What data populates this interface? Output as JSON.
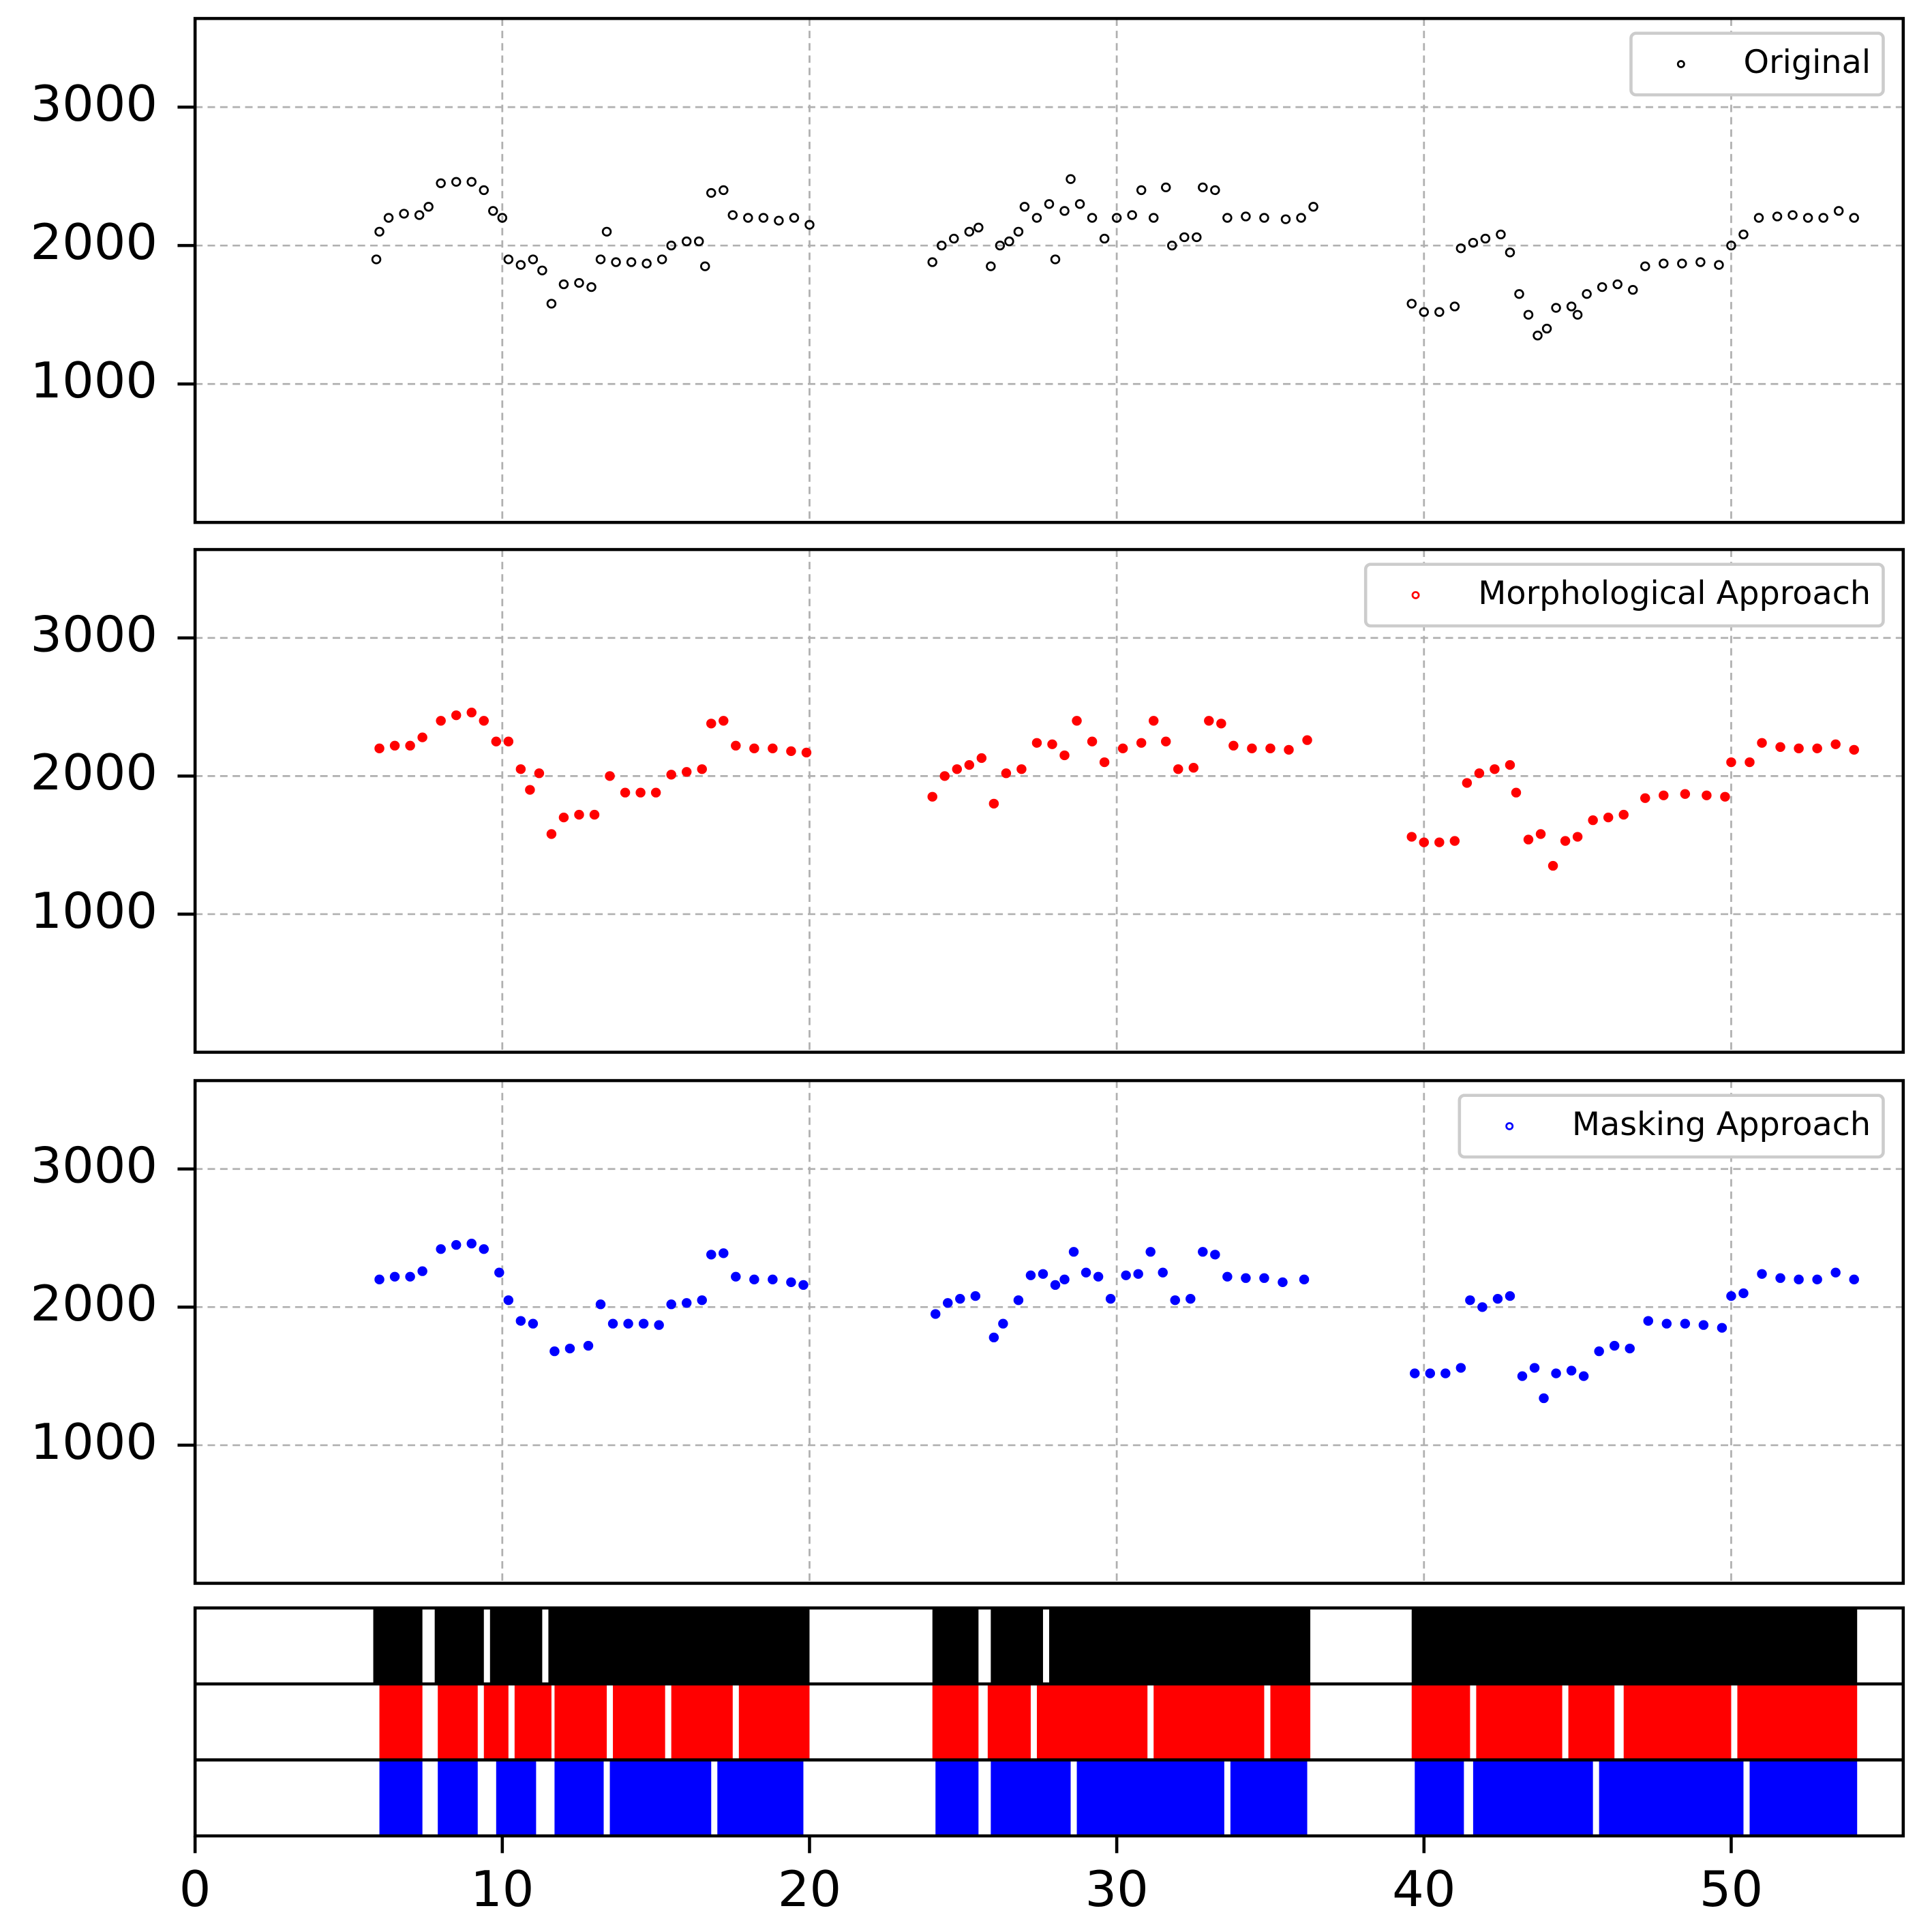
{
  "chart_data": [
    {
      "type": "scatter",
      "xlim": [
        0,
        55.6
      ],
      "ylim": [
        0,
        3640
      ],
      "xticks": [
        0,
        10,
        20,
        30,
        40,
        50
      ],
      "yticks": [
        1000,
        2000,
        3000
      ],
      "grid": true,
      "legend": "upper right",
      "x": [
        5.9,
        6.0,
        6.3,
        6.8,
        7.3,
        7.6,
        8.0,
        8.5,
        9.0,
        9.4,
        9.7,
        10.0,
        10.2,
        10.6,
        11.0,
        11.3,
        11.6,
        12.0,
        12.5,
        12.9,
        13.2,
        13.4,
        13.7,
        14.2,
        14.7,
        15.2,
        15.5,
        16.0,
        16.4,
        16.6,
        16.8,
        17.2,
        17.5,
        18.0,
        18.5,
        19.0,
        19.5,
        20.0,
        24.0,
        24.3,
        24.7,
        25.2,
        25.5,
        25.9,
        26.2,
        26.5,
        26.8,
        27.0,
        27.4,
        27.8,
        28.0,
        28.3,
        28.5,
        28.8,
        29.2,
        29.6,
        30.0,
        30.5,
        30.8,
        31.2,
        31.6,
        31.8,
        32.2,
        32.6,
        32.8,
        33.2,
        33.6,
        34.2,
        34.8,
        35.5,
        36.0,
        36.4,
        39.6,
        40.0,
        40.5,
        41.0,
        41.2,
        41.6,
        42.0,
        42.5,
        42.8,
        43.1,
        43.4,
        43.7,
        44.0,
        44.3,
        44.8,
        45.0,
        45.3,
        45.8,
        46.3,
        46.8,
        47.2,
        47.8,
        48.4,
        49.0,
        49.6,
        50.0,
        50.4,
        50.9,
        51.5,
        52.0,
        52.5,
        53.0,
        53.5,
        54.0
      ],
      "series": [
        {
          "name": "Original",
          "color": "#000000",
          "values": [
            1900,
            2100,
            2200,
            2230,
            2220,
            2280,
            2450,
            2460,
            2460,
            2400,
            2250,
            2200,
            1900,
            1860,
            1900,
            1820,
            1580,
            1720,
            1730,
            1700,
            1900,
            2100,
            1880,
            1880,
            1870,
            1900,
            2000,
            2030,
            2030,
            1850,
            2380,
            2400,
            2220,
            2200,
            2200,
            2180,
            2200,
            2150,
            1880,
            2000,
            2050,
            2100,
            2130,
            1850,
            2000,
            2030,
            2100,
            2280,
            2200,
            2300,
            1900,
            2250,
            2480,
            2300,
            2200,
            2050,
            2200,
            2220,
            2400,
            2200,
            2420,
            2000,
            2060,
            2060,
            2420,
            2400,
            2200,
            2210,
            2200,
            2190,
            2200,
            2280,
            1580,
            1520,
            1520,
            1560,
            1980,
            2020,
            2050,
            2080,
            1950,
            1650,
            1500,
            1350,
            1400,
            1550,
            1560,
            1500,
            1650,
            1700,
            1720,
            1680,
            1850,
            1870,
            1870,
            1880,
            1860,
            2000,
            2080,
            2200,
            2210,
            2220,
            2200,
            2200,
            2250,
            2200
          ]
        }
      ]
    },
    {
      "type": "scatter",
      "xlim": [
        0,
        55.6
      ],
      "ylim": [
        0,
        3640
      ],
      "xticks": [
        0,
        10,
        20,
        30,
        40,
        50
      ],
      "yticks": [
        1000,
        2000,
        3000
      ],
      "grid": true,
      "legend": "upper right",
      "x": [
        6.0,
        6.5,
        7.0,
        7.4,
        8.0,
        8.5,
        9.0,
        9.4,
        9.8,
        10.2,
        10.6,
        10.9,
        11.2,
        11.6,
        12.0,
        12.5,
        13.0,
        13.5,
        14.0,
        14.5,
        15.0,
        15.5,
        16.0,
        16.5,
        16.8,
        17.2,
        17.6,
        18.2,
        18.8,
        19.4,
        19.9,
        24.0,
        24.4,
        24.8,
        25.2,
        25.6,
        26.0,
        26.4,
        26.9,
        27.4,
        27.9,
        28.3,
        28.7,
        29.2,
        29.6,
        30.2,
        30.8,
        31.2,
        31.6,
        32.0,
        32.5,
        33.0,
        33.4,
        33.8,
        34.4,
        35.0,
        35.6,
        36.2,
        39.6,
        40.0,
        40.5,
        41.0,
        41.4,
        41.8,
        42.3,
        42.8,
        43.0,
        43.4,
        43.8,
        44.2,
        44.6,
        45.0,
        45.5,
        46.0,
        46.5,
        47.2,
        47.8,
        48.5,
        49.2,
        49.8,
        50.0,
        50.6,
        51.0,
        51.6,
        52.2,
        52.8,
        53.4,
        54.0
      ],
      "series": [
        {
          "name": "Morphological Approach",
          "color": "#ff0000",
          "values": [
            2200,
            2220,
            2220,
            2280,
            2400,
            2440,
            2460,
            2400,
            2250,
            2250,
            2050,
            1900,
            2020,
            1580,
            1700,
            1720,
            1720,
            2000,
            1880,
            1880,
            1880,
            2010,
            2030,
            2050,
            2380,
            2400,
            2220,
            2200,
            2200,
            2180,
            2170,
            1850,
            2000,
            2050,
            2080,
            2130,
            1800,
            2020,
            2050,
            2240,
            2230,
            2150,
            2400,
            2250,
            2100,
            2200,
            2240,
            2400,
            2250,
            2050,
            2060,
            2400,
            2380,
            2220,
            2200,
            2200,
            2190,
            2260,
            1560,
            1520,
            1520,
            1530,
            1950,
            2020,
            2050,
            2080,
            1880,
            1540,
            1580,
            1350,
            1530,
            1560,
            1680,
            1700,
            1720,
            1840,
            1860,
            1870,
            1860,
            1850,
            2100,
            2100,
            2240,
            2210,
            2200,
            2200,
            2230,
            2190
          ]
        }
      ]
    },
    {
      "type": "scatter",
      "xlim": [
        0,
        55.6
      ],
      "ylim": [
        0,
        3640
      ],
      "xticks": [
        0,
        10,
        20,
        30,
        40,
        50
      ],
      "yticks": [
        1000,
        2000,
        3000
      ],
      "grid": true,
      "legend": "upper right",
      "x": [
        6.0,
        6.5,
        7.0,
        7.4,
        8.0,
        8.5,
        9.0,
        9.4,
        9.9,
        10.2,
        10.6,
        11.0,
        11.7,
        12.2,
        12.8,
        13.2,
        13.6,
        14.1,
        14.6,
        15.1,
        15.5,
        16.0,
        16.5,
        16.8,
        17.2,
        17.6,
        18.2,
        18.8,
        19.4,
        19.8,
        24.1,
        24.5,
        24.9,
        25.4,
        26.0,
        26.3,
        26.8,
        27.2,
        27.6,
        28.0,
        28.3,
        28.6,
        29.0,
        29.4,
        29.8,
        30.3,
        30.7,
        31.1,
        31.5,
        31.9,
        32.4,
        32.8,
        33.2,
        33.6,
        34.2,
        34.8,
        35.4,
        36.1,
        39.7,
        40.2,
        40.7,
        41.2,
        41.5,
        41.9,
        42.4,
        42.8,
        43.2,
        43.6,
        43.9,
        44.3,
        44.8,
        45.2,
        45.7,
        46.2,
        46.7,
        47.3,
        47.9,
        48.5,
        49.1,
        49.7,
        50.0,
        50.4,
        51.0,
        51.6,
        52.2,
        52.8,
        53.4,
        54.0
      ],
      "series": [
        {
          "name": "Masking Approach",
          "color": "#0000ff",
          "values": [
            2200,
            2220,
            2220,
            2260,
            2420,
            2450,
            2460,
            2420,
            2250,
            2050,
            1900,
            1880,
            1680,
            1700,
            1720,
            2020,
            1880,
            1880,
            1880,
            1870,
            2020,
            2030,
            2050,
            2380,
            2390,
            2220,
            2200,
            2200,
            2180,
            2160,
            1950,
            2030,
            2060,
            2080,
            1780,
            1880,
            2050,
            2230,
            2240,
            2160,
            2200,
            2400,
            2250,
            2220,
            2060,
            2230,
            2240,
            2400,
            2250,
            2050,
            2060,
            2400,
            2380,
            2220,
            2210,
            2210,
            2180,
            2200,
            1520,
            1520,
            1520,
            1560,
            2050,
            2000,
            2060,
            2080,
            1500,
            1560,
            1340,
            1520,
            1540,
            1500,
            1680,
            1720,
            1700,
            1900,
            1880,
            1880,
            1870,
            1850,
            2080,
            2100,
            2240,
            2210,
            2200,
            2200,
            2250,
            2200
          ]
        }
      ]
    },
    {
      "type": "raster",
      "xlim": [
        0,
        55.6
      ],
      "xticks": [
        0,
        10,
        20,
        30,
        40,
        50
      ],
      "series": [
        {
          "color": "#000000",
          "intervals": [
            [
              5.8,
              7.4
            ],
            [
              7.8,
              9.4
            ],
            [
              9.6,
              11.3
            ],
            [
              11.5,
              20.0
            ],
            [
              24.0,
              25.5
            ],
            [
              25.9,
              27.6
            ],
            [
              27.8,
              36.3
            ],
            [
              39.6,
              54.1
            ]
          ]
        },
        {
          "color": "#ff0000",
          "intervals": [
            [
              6.0,
              7.4
            ],
            [
              7.9,
              9.2
            ],
            [
              9.4,
              10.2
            ],
            [
              10.4,
              11.6
            ],
            [
              11.7,
              13.4
            ],
            [
              13.6,
              15.3
            ],
            [
              15.5,
              17.5
            ],
            [
              17.7,
              20.0
            ],
            [
              24.0,
              25.5
            ],
            [
              25.8,
              27.2
            ],
            [
              27.4,
              31.0
            ],
            [
              31.2,
              34.8
            ],
            [
              35.0,
              36.3
            ],
            [
              39.6,
              41.5
            ],
            [
              41.7,
              44.5
            ],
            [
              44.7,
              46.2
            ],
            [
              46.5,
              50.0
            ],
            [
              50.2,
              54.1
            ]
          ]
        },
        {
          "color": "#0000ff",
          "intervals": [
            [
              6.0,
              7.4
            ],
            [
              7.9,
              9.2
            ],
            [
              9.8,
              11.1
            ],
            [
              11.7,
              13.3
            ],
            [
              13.5,
              16.8
            ],
            [
              17.0,
              19.8
            ],
            [
              24.1,
              25.5
            ],
            [
              25.9,
              28.5
            ],
            [
              28.7,
              33.5
            ],
            [
              33.7,
              36.2
            ],
            [
              39.7,
              41.3
            ],
            [
              41.6,
              45.5
            ],
            [
              45.7,
              50.4
            ],
            [
              50.6,
              54.1
            ]
          ]
        }
      ]
    }
  ]
}
